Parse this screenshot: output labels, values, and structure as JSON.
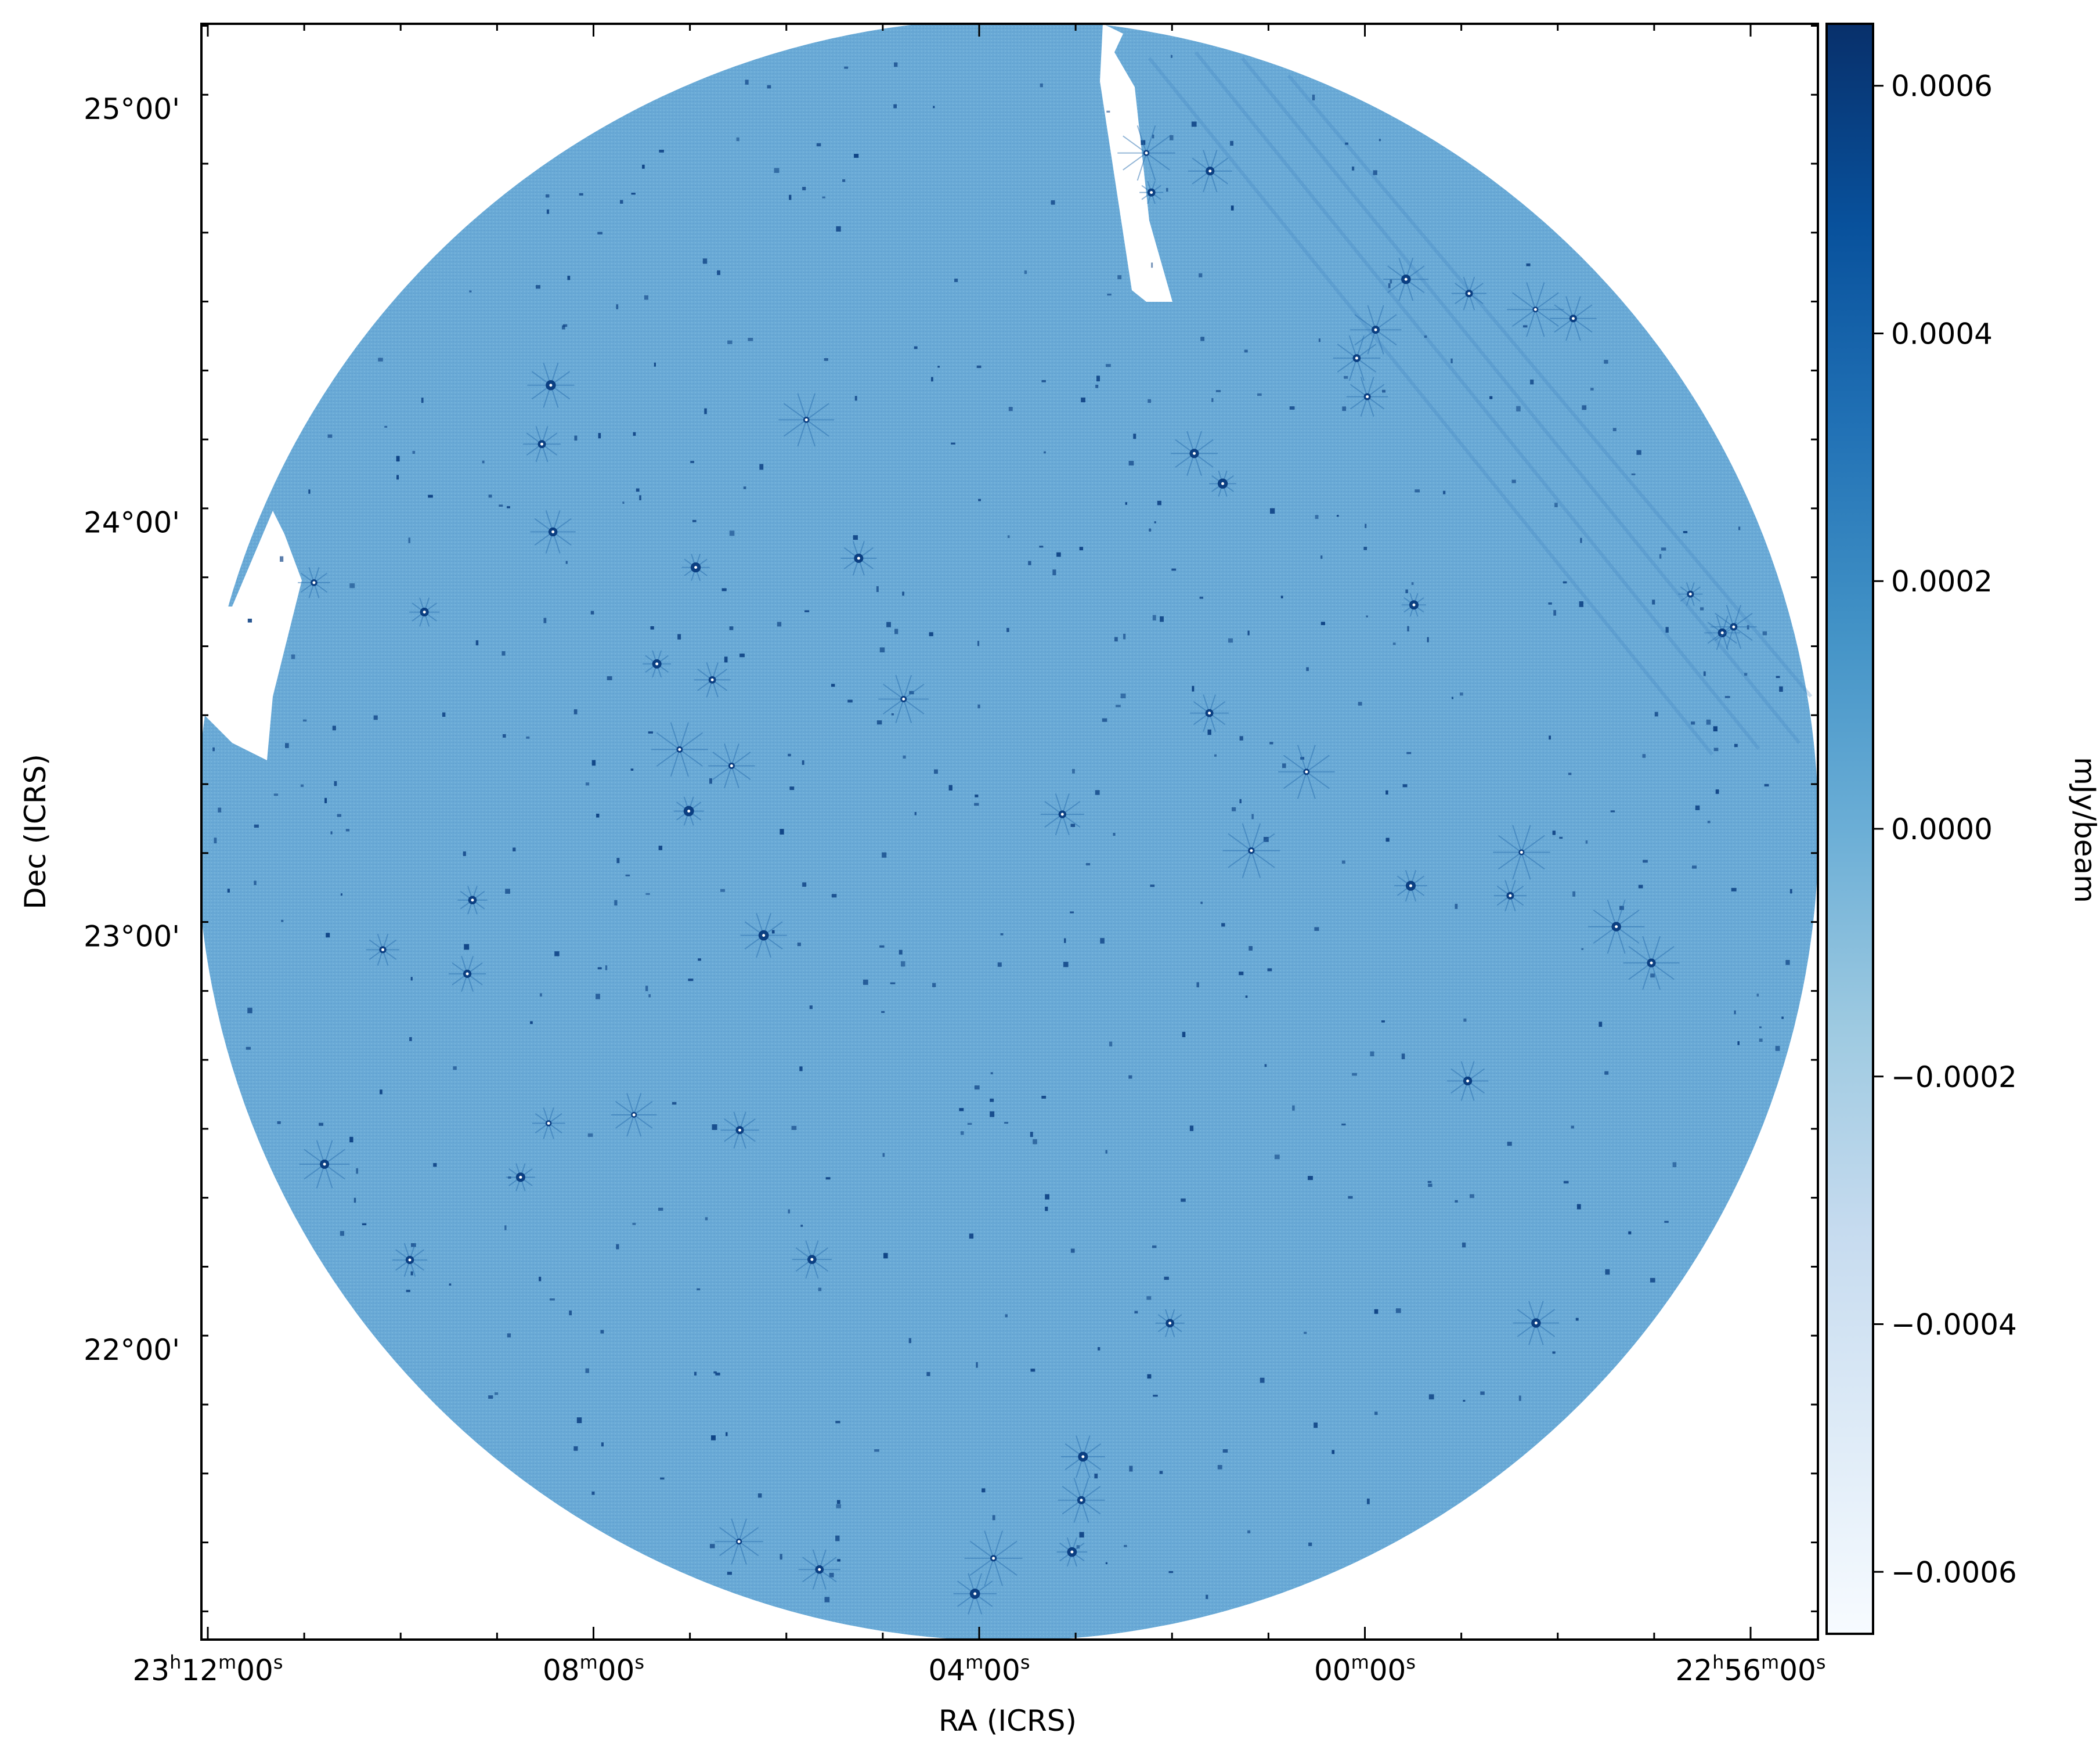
{
  "chart_data": {
    "type": "heatmap",
    "title": "",
    "xlabel": "RA (ICRS)",
    "ylabel": "Dec (ICRS)",
    "x_ticks": [
      {
        "value_ra_min": 1392,
        "parts": [
          [
            "23",
            "h"
          ],
          [
            "12",
            "m"
          ],
          [
            "00",
            "s"
          ]
        ]
      },
      {
        "value_ra_min": 1388,
        "parts": [
          [
            "",
            ""
          ],
          [
            "08",
            "m"
          ],
          [
            "00",
            "s"
          ]
        ]
      },
      {
        "value_ra_min": 1384,
        "parts": [
          [
            "",
            ""
          ],
          [
            "04",
            "m"
          ],
          [
            "00",
            "s"
          ]
        ]
      },
      {
        "value_ra_min": 1380,
        "parts": [
          [
            "",
            ""
          ],
          [
            "00",
            "m"
          ],
          [
            "00",
            "s"
          ]
        ]
      },
      {
        "value_ra_min": 1376,
        "parts": [
          [
            "22",
            "h"
          ],
          [
            "56",
            "m"
          ],
          [
            "00",
            "s"
          ]
        ]
      }
    ],
    "y_ticks": [
      {
        "value_deg": 25,
        "label": "25°00'"
      },
      {
        "value_deg": 24,
        "label": "24°00'"
      },
      {
        "value_deg": 23,
        "label": "23°00'"
      },
      {
        "value_deg": 22,
        "label": "22°00'"
      }
    ],
    "colorbar": {
      "label": "mJy/beam",
      "colormap": "Blues",
      "vmin": -0.00065,
      "vmax": 0.00065,
      "ticks": [
        0.0006,
        0.0004,
        0.0002,
        0.0,
        -0.0002,
        -0.0004,
        -0.0006
      ],
      "tick_labels": [
        "0.0006",
        "0.0004",
        "0.0002",
        "0.0000",
        "−0.0002",
        "−0.0004",
        "−0.0006"
      ],
      "colors": [
        "#f7fbff",
        "#deebf7",
        "#c6dbef",
        "#9ecae1",
        "#6baed6",
        "#4292c6",
        "#2171b5",
        "#08519c",
        "#08306b"
      ]
    },
    "image_fill_color": "#6aaad6",
    "source_color": "#0b3f82"
  }
}
